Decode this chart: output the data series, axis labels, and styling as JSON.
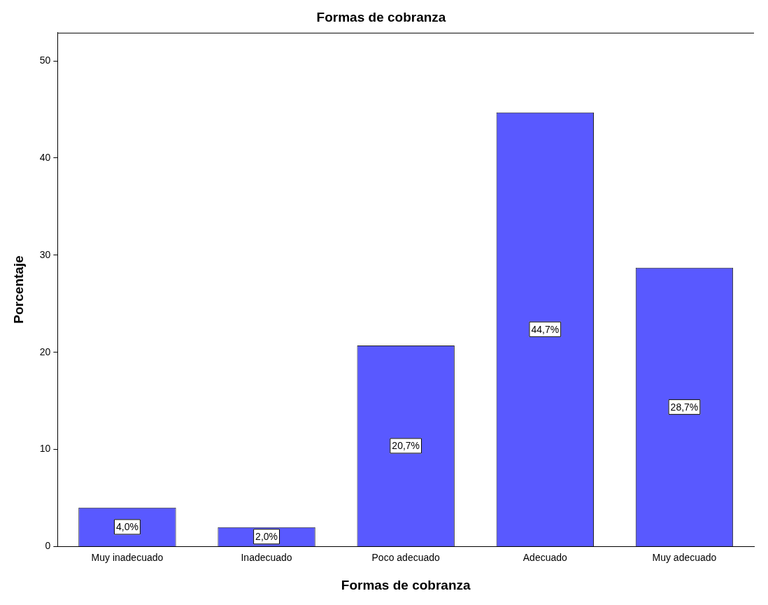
{
  "chart_data": {
    "type": "bar",
    "title": "Formas de cobranza",
    "xlabel": "Formas de cobranza",
    "ylabel": "Porcentaje",
    "categories": [
      "Muy inadecuado",
      "Inadecuado",
      "Poco adecuado",
      "Adecuado",
      "Muy adecuado"
    ],
    "values": [
      4.0,
      2.0,
      20.7,
      44.7,
      28.7
    ],
    "value_labels": [
      "4,0%",
      "2,0%",
      "20,7%",
      "44,7%",
      "28,7%"
    ],
    "color": "#5959ff",
    "ylim": [
      0,
      52.9
    ],
    "yticks": [
      0,
      10,
      20,
      30,
      40,
      50
    ],
    "grid": false,
    "legend": false
  }
}
